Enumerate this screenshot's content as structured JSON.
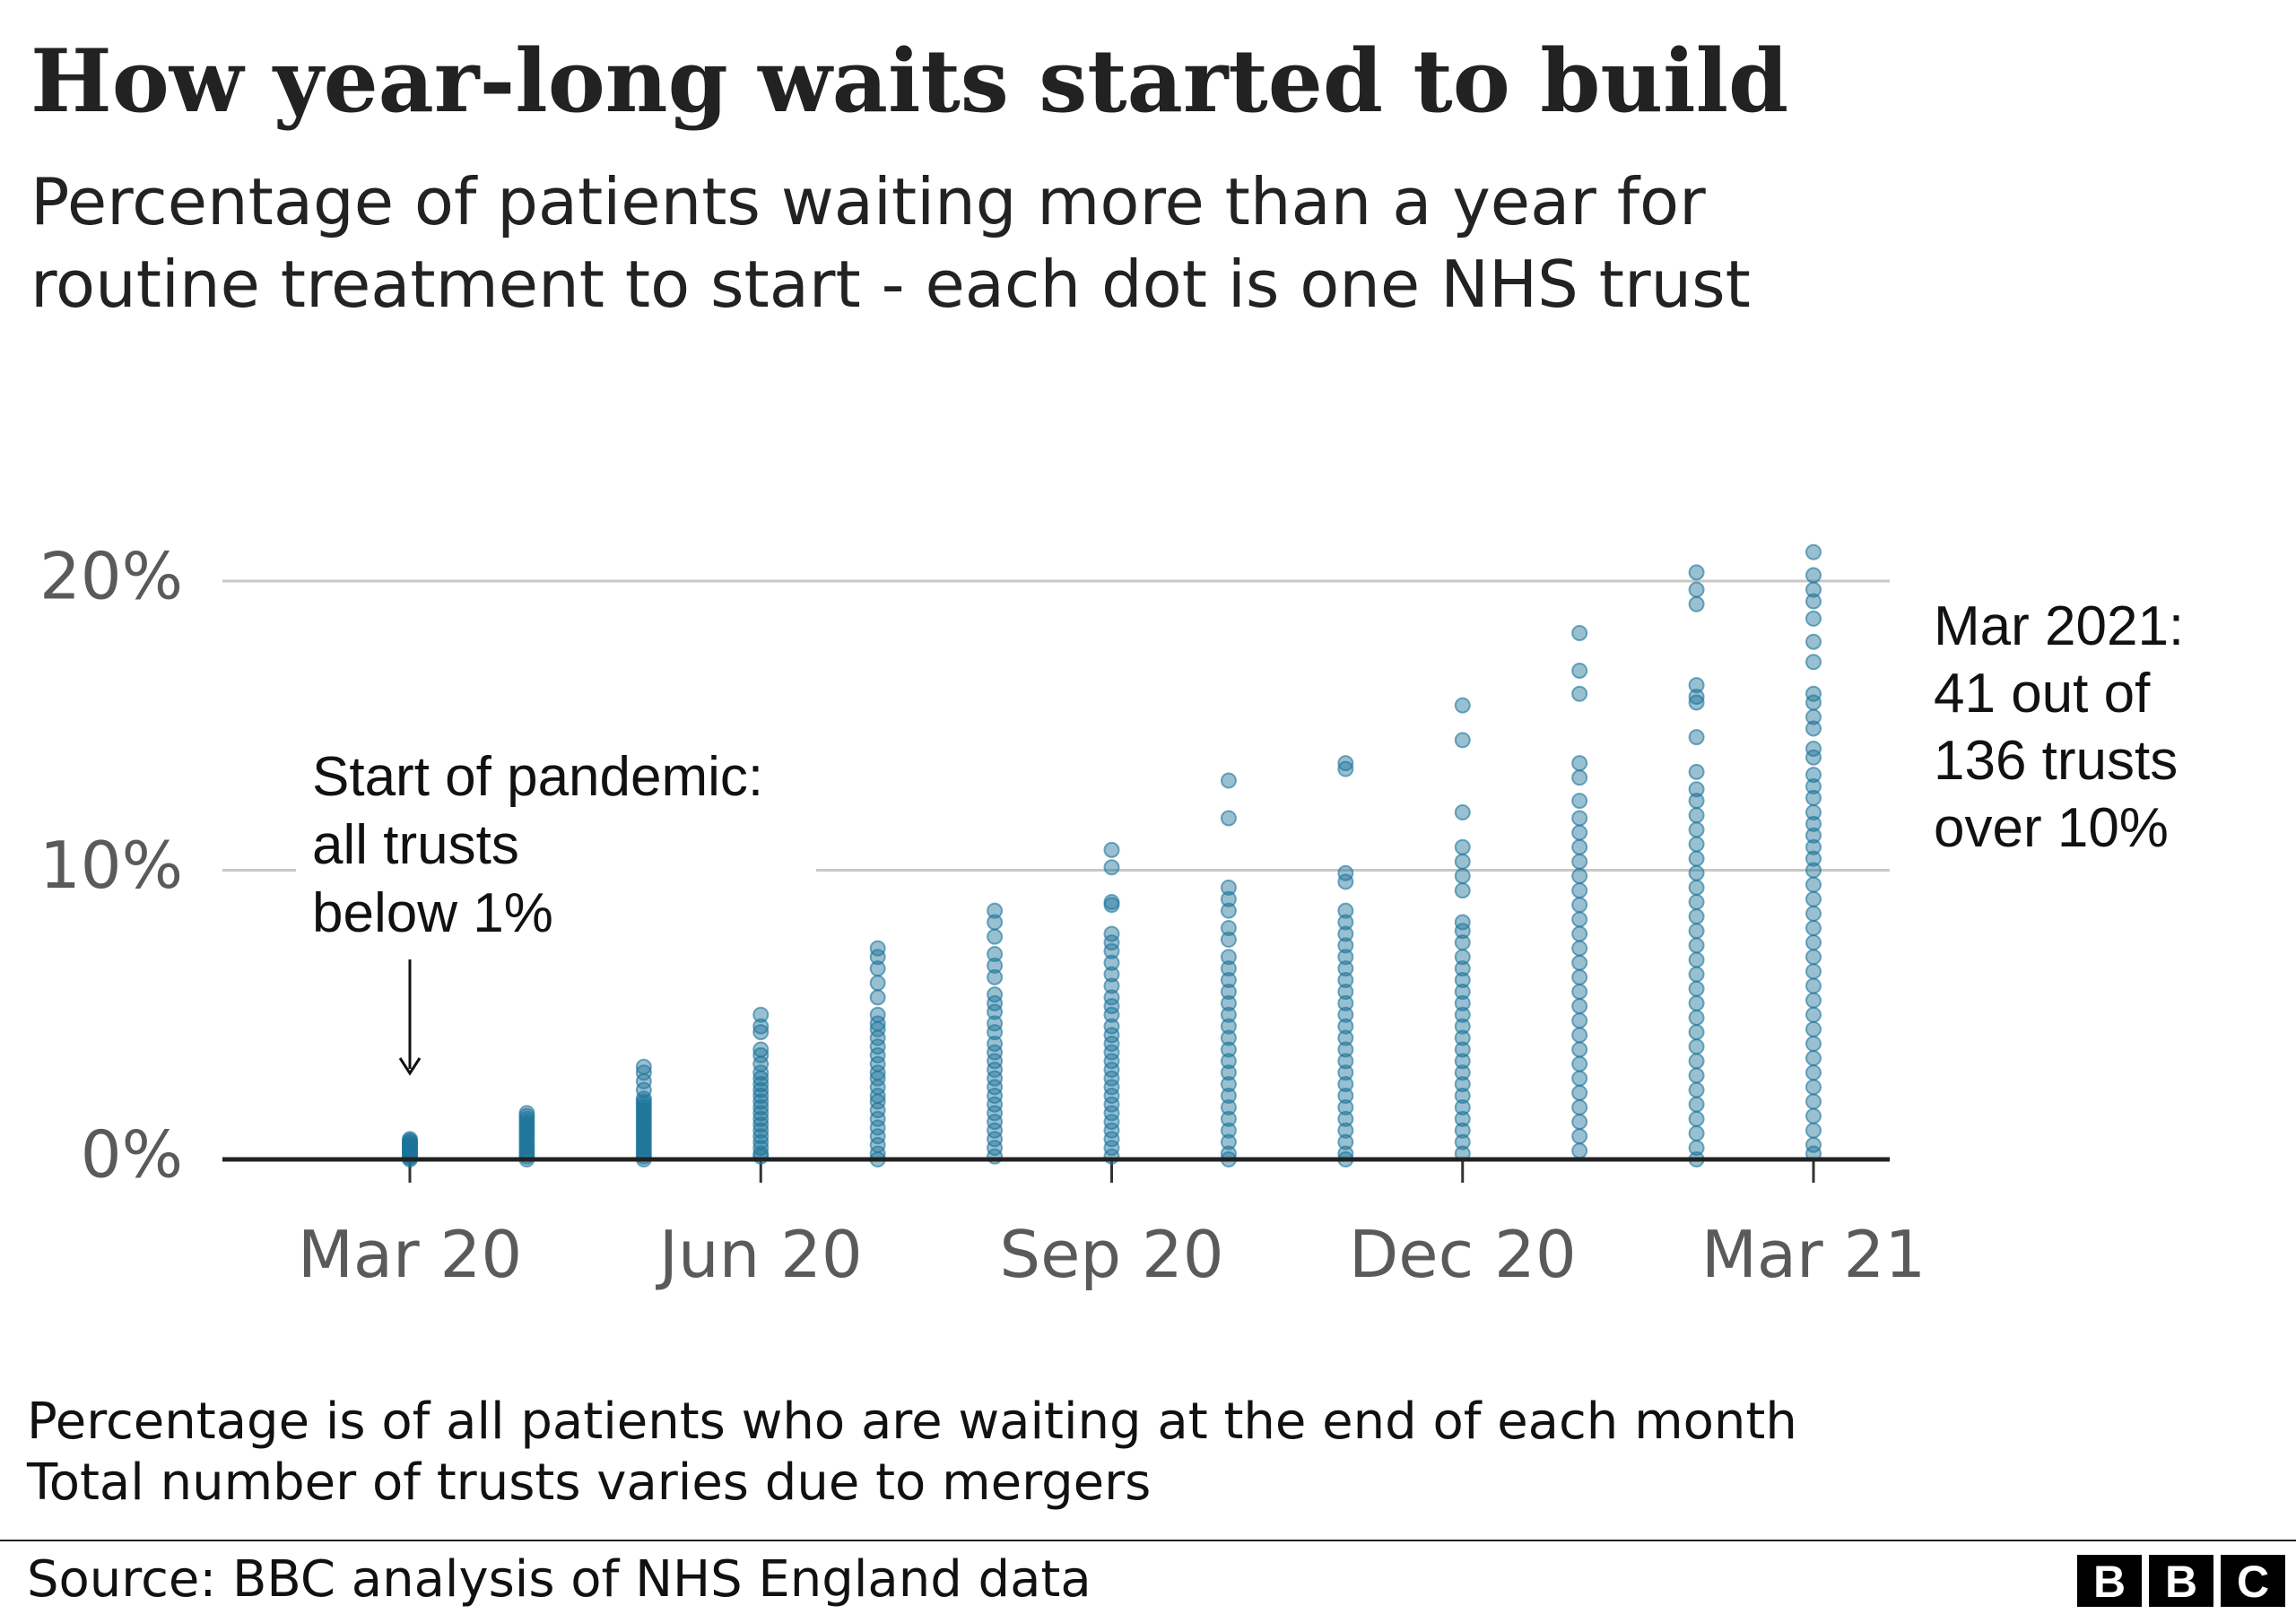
{
  "chart_data": {
    "type": "strip",
    "title": "How year-long waits started to build",
    "subtitle": [
      "Percentage of patients waiting more than a year for",
      "routine treatment to start - each dot is one NHS trust"
    ],
    "categories": [
      "Mar 20",
      null,
      null,
      "Jun 20",
      null,
      null,
      "Sep 20",
      null,
      null,
      "Dec 20",
      null,
      null,
      "Mar 21"
    ],
    "values": [
      [
        0.7,
        0.65,
        0.6,
        0.55,
        0.5,
        0.45,
        0.4,
        0.35,
        0.3,
        0.25,
        0.2,
        0.15,
        0.1,
        0.05,
        0
      ],
      [
        1.6,
        1.5,
        1.4,
        1.3,
        1.2,
        1.1,
        1.0,
        0.9,
        0.8,
        0.7,
        0.6,
        0.5,
        0.4,
        0.3,
        0.2,
        0.1,
        0
      ],
      [
        3.2,
        3.0,
        2.7,
        2.4,
        2.1,
        2.0,
        1.9,
        1.8,
        1.7,
        1.6,
        1.5,
        1.4,
        1.3,
        1.2,
        1.1,
        1.0,
        0.9,
        0.8,
        0.7,
        0.6,
        0.5,
        0.4,
        0.3,
        0.2,
        0.1,
        0
      ],
      [
        5.0,
        4.6,
        4.4,
        3.8,
        3.6,
        3.3,
        3.0,
        2.8,
        2.6,
        2.4,
        2.2,
        2.0,
        1.8,
        1.6,
        1.4,
        1.2,
        1.0,
        0.8,
        0.6,
        0.4,
        0.2,
        0.1
      ],
      [
        7.3,
        7.0,
        6.6,
        6.1,
        5.6,
        5.0,
        4.7,
        4.5,
        4.2,
        3.9,
        3.6,
        3.3,
        3.0,
        2.8,
        2.5,
        2.2,
        2.0,
        1.7,
        1.4,
        1.1,
        0.8,
        0.5,
        0.2,
        0
      ],
      [
        8.6,
        8.2,
        7.7,
        7.1,
        6.7,
        6.3,
        5.7,
        5.4,
        5.1,
        4.7,
        4.4,
        4.0,
        3.7,
        3.4,
        3.1,
        2.8,
        2.5,
        2.2,
        1.9,
        1.6,
        1.3,
        1.0,
        0.7,
        0.4,
        0.1
      ],
      [
        10.7,
        10.1,
        8.9,
        8.8,
        7.8,
        7.5,
        7.2,
        6.8,
        6.4,
        6.0,
        5.6,
        5.3,
        5.0,
        4.6,
        4.3,
        4.0,
        3.7,
        3.4,
        3.1,
        2.8,
        2.5,
        2.2,
        1.9,
        1.6,
        1.3,
        1.0,
        0.7,
        0.4,
        0.1
      ],
      [
        13.1,
        11.8,
        9.4,
        9.0,
        8.6,
        8.0,
        7.6,
        7.0,
        6.6,
        6.2,
        5.8,
        5.4,
        5.0,
        4.6,
        4.2,
        3.8,
        3.4,
        3.0,
        2.6,
        2.2,
        1.8,
        1.4,
        1.0,
        0.6,
        0.2,
        0
      ],
      [
        13.7,
        13.5,
        9.9,
        9.6,
        8.6,
        8.2,
        7.8,
        7.4,
        7.0,
        6.6,
        6.2,
        5.8,
        5.4,
        5.0,
        4.6,
        4.2,
        3.8,
        3.4,
        3.0,
        2.6,
        2.2,
        1.8,
        1.4,
        1.0,
        0.6,
        0.2,
        0
      ],
      [
        15.7,
        14.5,
        12.0,
        10.8,
        10.3,
        9.8,
        9.3,
        8.2,
        7.9,
        7.5,
        7.0,
        6.6,
        6.2,
        5.8,
        5.4,
        5.0,
        4.6,
        4.2,
        3.8,
        3.4,
        3.0,
        2.6,
        2.2,
        1.8,
        1.4,
        1.0,
        0.6,
        0.2
      ],
      [
        18.2,
        16.9,
        16.1,
        13.7,
        13.2,
        12.4,
        11.8,
        11.3,
        10.8,
        10.3,
        9.8,
        9.3,
        8.8,
        8.3,
        7.8,
        7.3,
        6.8,
        6.3,
        5.8,
        5.3,
        4.8,
        4.3,
        3.8,
        3.3,
        2.8,
        2.3,
        1.8,
        1.3,
        0.8,
        0.3
      ],
      [
        20.3,
        19.7,
        19.2,
        16.4,
        16.0,
        15.8,
        14.6,
        13.4,
        12.8,
        12.4,
        11.9,
        11.4,
        10.9,
        10.4,
        9.9,
        9.4,
        8.9,
        8.4,
        7.9,
        7.4,
        6.9,
        6.4,
        5.9,
        5.4,
        4.9,
        4.4,
        3.9,
        3.4,
        2.9,
        2.4,
        1.9,
        1.4,
        0.9,
        0.4,
        0
      ],
      [
        21.0,
        20.2,
        19.7,
        19.3,
        18.7,
        17.9,
        17.2,
        16.1,
        15.8,
        15.3,
        14.9,
        14.2,
        13.9,
        13.3,
        12.9,
        12.5,
        12.0,
        11.6,
        11.2,
        10.8,
        10.4,
        10.0,
        9.5,
        9.0,
        8.5,
        8.0,
        7.5,
        7.0,
        6.5,
        6.0,
        5.5,
        5.0,
        4.5,
        4.0,
        3.5,
        3.0,
        2.5,
        2.0,
        1.5,
        1.0,
        0.5,
        0.2
      ]
    ],
    "color": "#1d7399",
    "ylim": [
      0,
      22
    ],
    "yticks": [
      {
        "value": 0,
        "label": "0%"
      },
      {
        "value": 10,
        "label": "10%"
      },
      {
        "value": 20,
        "label": "20%"
      }
    ],
    "grid": true,
    "annotations": [
      [
        "Start of pandemic:",
        "all trusts",
        "below 1%"
      ],
      [
        "Mar 2021:",
        "41 out of",
        "136 trusts",
        "over 10%"
      ]
    ],
    "notes": [
      "Percentage is of all patients who are waiting at the end of each month",
      "Total number of trusts varies due to mergers"
    ],
    "source": "Source: BBC analysis of NHS England data",
    "logo": [
      "B",
      "B",
      "C"
    ]
  }
}
